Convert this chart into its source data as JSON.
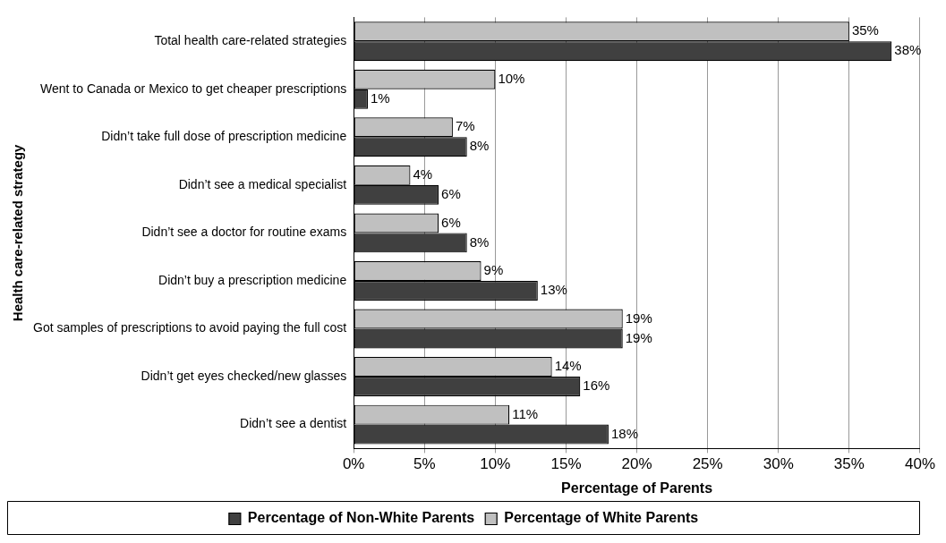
{
  "chart_data": {
    "type": "bar",
    "orientation": "horizontal",
    "xlabel": "Percentage of Parents",
    "ylabel": "Health care-related strategy",
    "categories": [
      "Total health care-related strategies",
      "Went to Canada or Mexico to get cheaper prescriptions",
      "Didn’t take full dose of prescription medicine",
      "Didn’t see a medical specialist",
      "Didn’t see a doctor for routine exams",
      "Didn’t buy a prescription medicine",
      "Got samples of prescriptions to avoid paying the full cost",
      "Didn’t get eyes checked/new glasses",
      "Didn’t see a dentist"
    ],
    "series": [
      {
        "name": "Percentage of White Parents",
        "color": "#c0c0c0",
        "values": [
          35,
          10,
          7,
          4,
          6,
          9,
          19,
          14,
          11
        ],
        "value_labels": [
          "35%",
          "10%",
          "7%",
          "4%",
          "6%",
          "9%",
          "19%",
          "14%",
          "11%"
        ]
      },
      {
        "name": "Percentage of Non-White Parents",
        "color": "#404040",
        "values": [
          38,
          1,
          8,
          6,
          8,
          13,
          19,
          16,
          18
        ],
        "value_labels": [
          "38%",
          "1%",
          "8%",
          "6%",
          "8%",
          "13%",
          "19%",
          "16%",
          "18%"
        ]
      }
    ],
    "xlim": [
      0,
      40
    ],
    "xticks": [
      {
        "value": 0,
        "label": "0%"
      },
      {
        "value": 5,
        "label": "5%"
      },
      {
        "value": 10,
        "label": "10%"
      },
      {
        "value": 15,
        "label": "15%"
      },
      {
        "value": 20,
        "label": "20%"
      },
      {
        "value": 25,
        "label": "25%"
      },
      {
        "value": 30,
        "label": "30%"
      },
      {
        "value": 35,
        "label": "35%"
      },
      {
        "value": 40,
        "label": "40%"
      }
    ],
    "grid": "x",
    "legend": "bottom"
  }
}
